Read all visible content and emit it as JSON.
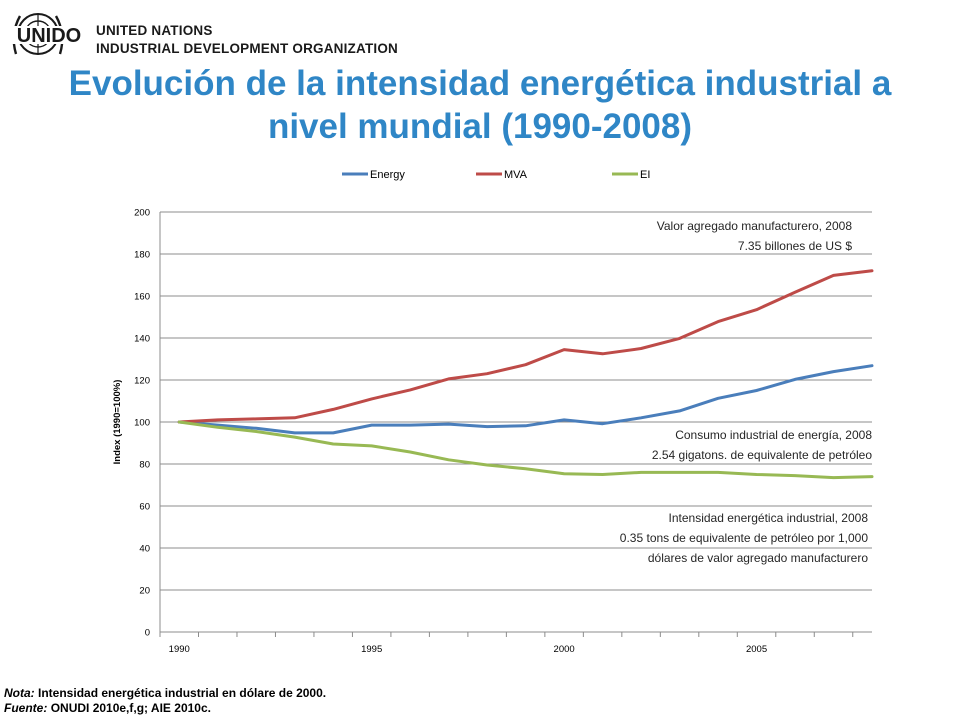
{
  "header": {
    "logo_text": "UNIDO",
    "org_line1": "UNITED NATIONS",
    "org_line2": "INDUSTRIAL DEVELOPMENT ORGANIZATION"
  },
  "title_line1": "Evolución de la intensidad energética industrial a",
  "title_line2": "nivel mundial (1990-2008)",
  "colors": {
    "energy": "#4a7ebb",
    "mva": "#be4b48",
    "ei": "#98b954",
    "title": "#2f86c6"
  },
  "chart_data": {
    "type": "line",
    "x": [
      1990,
      1991,
      1992,
      1993,
      1994,
      1995,
      1996,
      1997,
      1998,
      1999,
      2000,
      2001,
      2002,
      2003,
      2004,
      2005,
      2006,
      2007,
      2008
    ],
    "series": [
      {
        "name": "Energy",
        "values": [
          100,
          98.5,
          97,
          94.8,
          94.8,
          98.5,
          98.5,
          99,
          97.8,
          98.2,
          101,
          99.2,
          102,
          105.3,
          111.3,
          115,
          120.3,
          124,
          126.8
        ]
      },
      {
        "name": "MVA",
        "values": [
          100,
          101,
          101.5,
          102,
          106,
          111,
          115.3,
          120.5,
          123,
          127.3,
          134.5,
          132.5,
          135,
          139.8,
          147.8,
          153.5,
          161.8,
          169.8,
          172
        ]
      },
      {
        "name": "EI",
        "values": [
          100,
          97.5,
          95.5,
          92.8,
          89.5,
          88.6,
          85.7,
          82,
          79.5,
          77.7,
          75.4,
          75,
          76,
          76,
          76,
          75,
          74.5,
          73.5,
          74
        ]
      }
    ],
    "xlabel": "",
    "ylabel": "Index (1990=100%)",
    "ylim": [
      0,
      200
    ],
    "yticks": [
      "0",
      "20",
      "40",
      "60",
      "80",
      "100",
      "120",
      "140",
      "160",
      "180",
      "200"
    ],
    "xtick_labels": [
      "1990",
      "1995",
      "2000",
      "2005"
    ],
    "legend_position": "top",
    "grid": true,
    "annotations": {
      "mva": [
        "Valor agregado manufacturero, 2008",
        "7.35 billones de US $"
      ],
      "energy": [
        "Consumo industrial de energía, 2008",
        "2.54  gigatons. de equivalente de petróleo"
      ],
      "ei": [
        "Intensidad energética industrial, 2008",
        "0.35 tons de equivalente de petróleo por 1,000",
        "dólares de valor agregado manufacturero"
      ]
    }
  },
  "footer": {
    "note_label": "Nota:",
    "note_text": "Intensidad energética industrial en dólare de 2000.",
    "source_label": "Fuente:",
    "source_text": "ONUDI 2010e,f,g; AIE 2010c."
  }
}
